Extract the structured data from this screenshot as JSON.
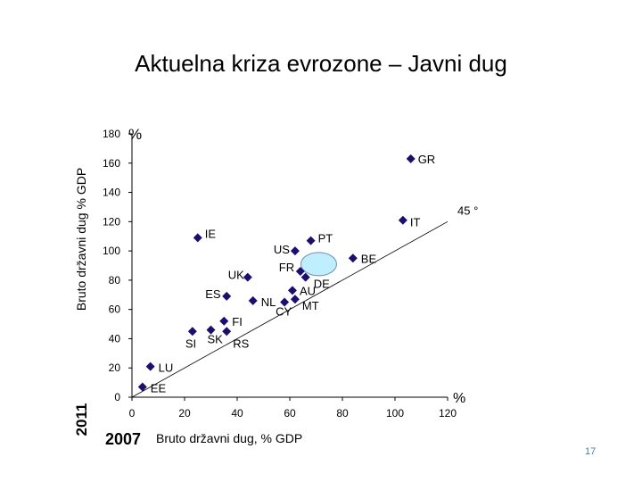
{
  "title": "Aktuelna kriza evrozone – Javni dug",
  "page_number": "17",
  "chart_data": {
    "type": "scatter",
    "xlabel": "Bruto državni dug, % GDP",
    "ylabel": "Bruto državni dug % GDP",
    "x_unit": "%",
    "y_unit": "%",
    "xlim": [
      0,
      120
    ],
    "ylim": [
      0,
      180
    ],
    "x_ticks": [
      "0",
      "20",
      "40",
      "60",
      "80",
      "100",
      "120"
    ],
    "y_ticks": [
      "0",
      "20",
      "40",
      "60",
      "80",
      "100",
      "120",
      "140",
      "160",
      "180"
    ],
    "x_period": "2007",
    "y_period": "2011",
    "reference_line_label": "45 °",
    "grid": false,
    "marker_color": "#1a0e6e",
    "highlight_color": "#bfefff",
    "points": [
      {
        "label": "GR",
        "x": 106,
        "y": 163
      },
      {
        "label": "IT",
        "x": 103,
        "y": 121
      },
      {
        "label": "IE",
        "x": 25,
        "y": 109
      },
      {
        "label": "PT",
        "x": 68,
        "y": 107
      },
      {
        "label": "US",
        "x": 62,
        "y": 100
      },
      {
        "label": "BE",
        "x": 84,
        "y": 95
      },
      {
        "label": "FR",
        "x": 64,
        "y": 86
      },
      {
        "label": "DE",
        "x": 66,
        "y": 82
      },
      {
        "label": "UK",
        "x": 44,
        "y": 82
      },
      {
        "label": "AU",
        "x": 61,
        "y": 73
      },
      {
        "label": "ES",
        "x": 36,
        "y": 69
      },
      {
        "label": "NL",
        "x": 46,
        "y": 66
      },
      {
        "label": "MT",
        "x": 62,
        "y": 67
      },
      {
        "label": "CY",
        "x": 58,
        "y": 65
      },
      {
        "label": "FI",
        "x": 35,
        "y": 52
      },
      {
        "label": "SI",
        "x": 23,
        "y": 45
      },
      {
        "label": "SK",
        "x": 30,
        "y": 46
      },
      {
        "label": "RS",
        "x": 36,
        "y": 45
      },
      {
        "label": "LU",
        "x": 7,
        "y": 21
      },
      {
        "label": "EE",
        "x": 4,
        "y": 7
      }
    ]
  }
}
